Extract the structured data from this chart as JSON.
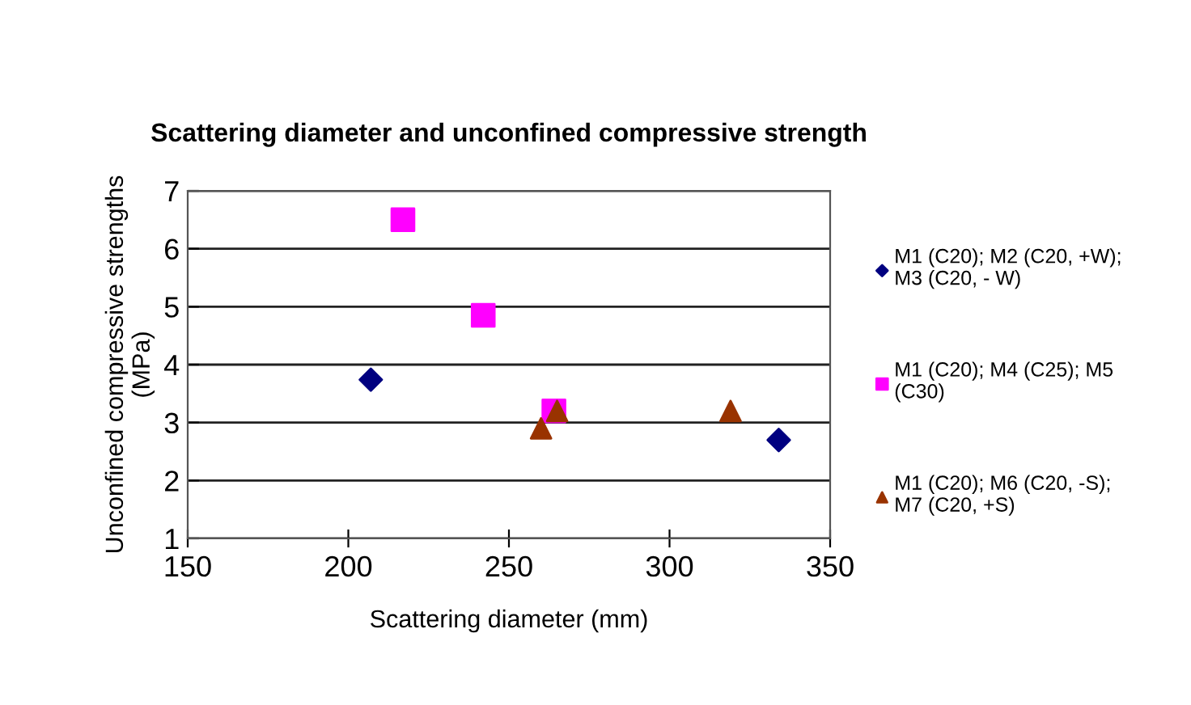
{
  "chart_data": {
    "type": "scatter",
    "title": "Scattering diameter and unconfined compressive strength",
    "xlabel": "Scattering diameter (mm)",
    "ylabel": "Unconfined compressive strengths\n(MPa)",
    "series": [
      {
        "name": "M1 (C20); M2 (C20, +W);\nM3 (C20, - W)",
        "color": "#000080",
        "marker": "diamond",
        "x": [
          207,
          334
        ],
        "values": [
          3.74,
          2.7
        ]
      },
      {
        "name": "M1 (C20); M4 (C25); M5\n(C30)",
        "color": "#ff00ff",
        "marker": "square",
        "x": [
          217,
          242,
          264
        ],
        "values": [
          6.5,
          4.85,
          3.2
        ]
      },
      {
        "name": "M1 (C20); M6 (C20, -S);\nM7 (C20, +S)",
        "color": "#993300",
        "marker": "triangle",
        "x": [
          260,
          265,
          319
        ],
        "values": [
          2.9,
          3.2,
          3.2
        ]
      }
    ],
    "xlim": [
      150,
      350
    ],
    "xticks": [
      150,
      200,
      250,
      300,
      350
    ],
    "ylim": [
      1,
      7
    ],
    "yticks": [
      1,
      2,
      3,
      4,
      5,
      6,
      7
    ],
    "grid": "y",
    "legend": "right"
  }
}
